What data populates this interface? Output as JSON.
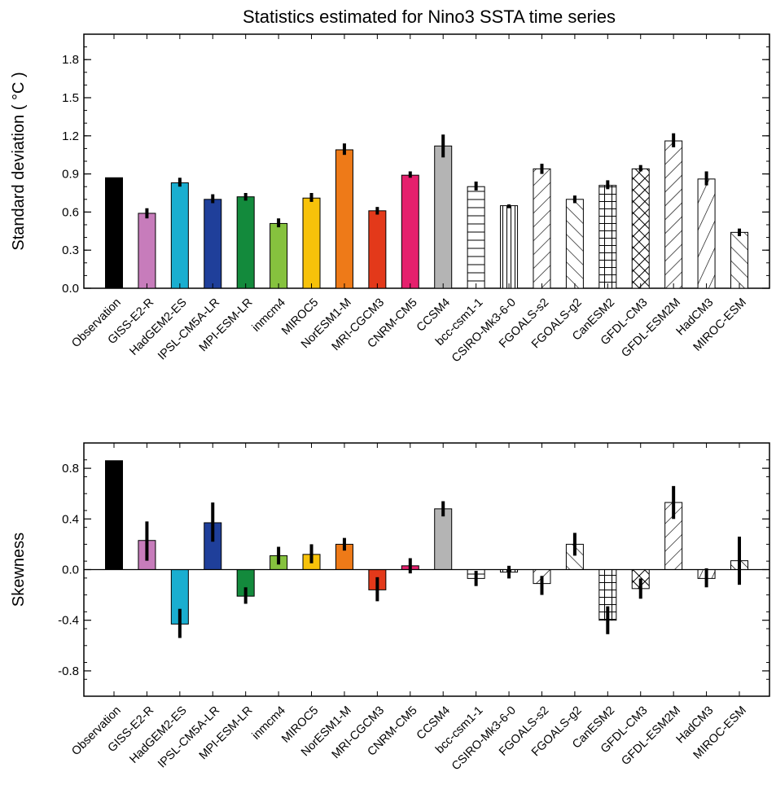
{
  "figure_title": "Statistics estimated for Nino3 SSTA time series",
  "colors": {
    "Observation": "#000000",
    "GISS-E2-R": "#c77cbb",
    "HadGEM2-ES": "#1aaed0",
    "IPSL-CM5A-LR": "#1f3f9a",
    "MPI-ESM-LR": "#138a3c",
    "inmcm4": "#86c23e",
    "MIROC5": "#f7c20a",
    "NorESM1-M": "#ee7a18",
    "MRI-CGCM3": "#e3391a",
    "CNRM-CM5": "#e5206d",
    "CCSM4": "#b4b4b4"
  },
  "patterns": {
    "bcc-csm1-1": "hlines",
    "CSIRO-Mk3-6-0": "vlines",
    "FGOALS-s2": "diag-up",
    "FGOALS-g2": "diag-down",
    "CanESM2": "grid",
    "GFDL-CM3": "crosshatch",
    "GFDL-ESM2M": "diag-up",
    "HadCM3": "diag-up-steep",
    "MIROC-ESM": "diag-down"
  },
  "chart_data": [
    {
      "type": "bar",
      "title": "Statistics estimated for Nino3 SSTA time series",
      "ylabel": "Standard deviation ( °C )",
      "ylim": [
        0,
        2.0
      ],
      "yticks": [
        "0.0",
        "0.3",
        "0.6",
        "0.9",
        "1.2",
        "1.5",
        "1.8"
      ],
      "ytick_values": [
        0.0,
        0.3,
        0.6,
        0.9,
        1.2,
        1.5,
        1.8
      ],
      "categories": [
        "Observation",
        "GISS-E2-R",
        "HadGEM2-ES",
        "IPSL-CM5A-LR",
        "MPI-ESM-LR",
        "inmcm4",
        "MIROC5",
        "NorESM1-M",
        "MRI-CGCM3",
        "CNRM-CM5",
        "CCSM4",
        "bcc-csm1-1",
        "CSIRO-Mk3-6-0",
        "FGOALS-s2",
        "FGOALS-g2",
        "CanESM2",
        "GFDL-CM3",
        "GFDL-ESM2M",
        "HadCM3",
        "MIROC-ESM"
      ],
      "values": [
        0.87,
        0.59,
        0.83,
        0.7,
        0.72,
        0.51,
        0.71,
        1.09,
        0.61,
        0.89,
        1.12,
        0.8,
        0.65,
        0.94,
        0.7,
        0.81,
        0.94,
        1.16,
        0.86,
        0.44
      ],
      "error_low": [
        null,
        0.55,
        0.8,
        0.67,
        0.69,
        0.48,
        0.68,
        1.05,
        0.58,
        0.87,
        1.03,
        0.77,
        0.63,
        0.9,
        0.67,
        0.78,
        0.92,
        1.11,
        0.81,
        0.41
      ],
      "error_high": [
        null,
        0.63,
        0.87,
        0.74,
        0.75,
        0.55,
        0.75,
        1.14,
        0.64,
        0.92,
        1.21,
        0.84,
        0.66,
        0.98,
        0.73,
        0.85,
        0.97,
        1.22,
        0.92,
        0.47
      ],
      "grid": false,
      "legend": "none"
    },
    {
      "type": "bar",
      "title": "",
      "ylabel": "Skewness",
      "ylim": [
        -1.0,
        1.0
      ],
      "yticks": [
        "-0.8",
        "-0.4",
        "0.0",
        "0.4",
        "0.8"
      ],
      "ytick_values": [
        -0.8,
        -0.4,
        0.0,
        0.4,
        0.8
      ],
      "categories": [
        "Observation",
        "GISS-E2-R",
        "HadGEM2-ES",
        "IPSL-CM5A-LR",
        "MPI-ESM-LR",
        "inmcm4",
        "MIROC5",
        "NorESM1-M",
        "MRI-CGCM3",
        "CNRM-CM5",
        "CCSM4",
        "bcc-csm1-1",
        "CSIRO-Mk3-6-0",
        "FGOALS-s2",
        "FGOALS-g2",
        "CanESM2",
        "GFDL-CM3",
        "GFDL-ESM2M",
        "HadCM3",
        "MIROC-ESM"
      ],
      "values": [
        0.86,
        0.23,
        -0.43,
        0.37,
        -0.21,
        0.11,
        0.12,
        0.2,
        -0.16,
        0.03,
        0.48,
        -0.07,
        -0.02,
        -0.11,
        0.2,
        -0.4,
        -0.15,
        0.53,
        -0.07,
        0.07
      ],
      "error_low": [
        null,
        0.07,
        -0.54,
        0.22,
        -0.27,
        0.04,
        0.05,
        0.15,
        -0.25,
        -0.03,
        0.42,
        -0.13,
        -0.07,
        -0.2,
        0.11,
        -0.51,
        -0.23,
        0.4,
        -0.14,
        -0.12
      ],
      "error_high": [
        null,
        0.38,
        -0.31,
        0.53,
        -0.14,
        0.18,
        0.2,
        0.25,
        -0.06,
        0.09,
        0.54,
        -0.01,
        0.03,
        -0.05,
        0.29,
        -0.29,
        -0.07,
        0.66,
        0.01,
        0.26
      ],
      "grid": false,
      "legend": "none"
    }
  ]
}
